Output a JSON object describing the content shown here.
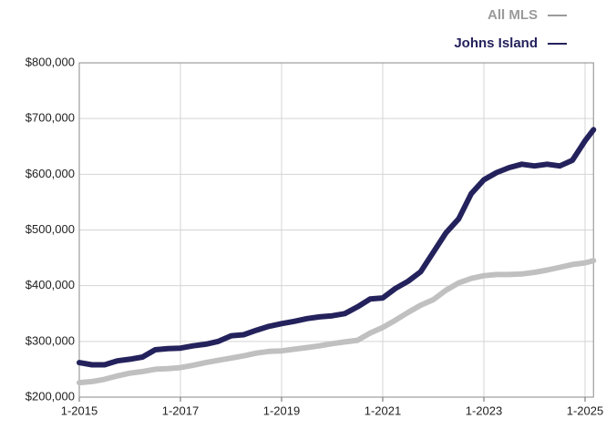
{
  "chart_data": {
    "type": "line",
    "x": [
      "1-2015",
      "4-2015",
      "7-2015",
      "10-2015",
      "1-2016",
      "4-2016",
      "7-2016",
      "10-2016",
      "1-2017",
      "4-2017",
      "7-2017",
      "10-2017",
      "1-2018",
      "4-2018",
      "7-2018",
      "10-2018",
      "1-2019",
      "4-2019",
      "7-2019",
      "10-2019",
      "1-2020",
      "4-2020",
      "7-2020",
      "10-2020",
      "1-2021",
      "4-2021",
      "7-2021",
      "10-2021",
      "1-2022",
      "4-2022",
      "7-2022",
      "10-2022",
      "1-2023",
      "4-2023",
      "7-2023",
      "10-2023",
      "1-2024",
      "4-2024",
      "7-2024",
      "10-2024",
      "1-2025",
      "3-2025"
    ],
    "series": [
      {
        "name": "All MLS",
        "color": "#c0c0c0",
        "values": [
          226000,
          228000,
          232000,
          238000,
          243000,
          246000,
          250000,
          251000,
          253000,
          257000,
          262000,
          266000,
          270000,
          274000,
          279000,
          282000,
          283000,
          286000,
          289000,
          292000,
          296000,
          299000,
          302000,
          315000,
          325000,
          338000,
          352000,
          365000,
          375000,
          392000,
          405000,
          413000,
          418000,
          420000,
          420000,
          421000,
          424000,
          428000,
          433000,
          438000,
          441000,
          445000
        ]
      },
      {
        "name": "Johns Island",
        "color": "#24225c",
        "values": [
          262000,
          258000,
          258000,
          265000,
          268000,
          272000,
          285000,
          287000,
          288000,
          292000,
          295000,
          300000,
          310000,
          312000,
          320000,
          327000,
          332000,
          336000,
          341000,
          344000,
          346000,
          350000,
          362000,
          376000,
          378000,
          395000,
          408000,
          425000,
          460000,
          495000,
          520000,
          565000,
          590000,
          603000,
          612000,
          618000,
          615000,
          618000,
          615000,
          625000,
          660000,
          680000
        ]
      }
    ],
    "xlim": [
      "1-2015",
      "3-2025"
    ],
    "xticks": [
      "1-2015",
      "1-2017",
      "1-2019",
      "1-2021",
      "1-2023",
      "1-2025"
    ],
    "ylim": [
      200000,
      800000
    ],
    "yticks": [
      {
        "value": 200000,
        "label": "$200,000"
      },
      {
        "value": 300000,
        "label": "$300,000"
      },
      {
        "value": 400000,
        "label": "$400,000"
      },
      {
        "value": 500000,
        "label": "$500,000"
      },
      {
        "value": 600000,
        "label": "$600,000"
      },
      {
        "value": 700000,
        "label": "$700,000"
      },
      {
        "value": 800000,
        "label": "$800,000"
      }
    ],
    "grid": true
  }
}
